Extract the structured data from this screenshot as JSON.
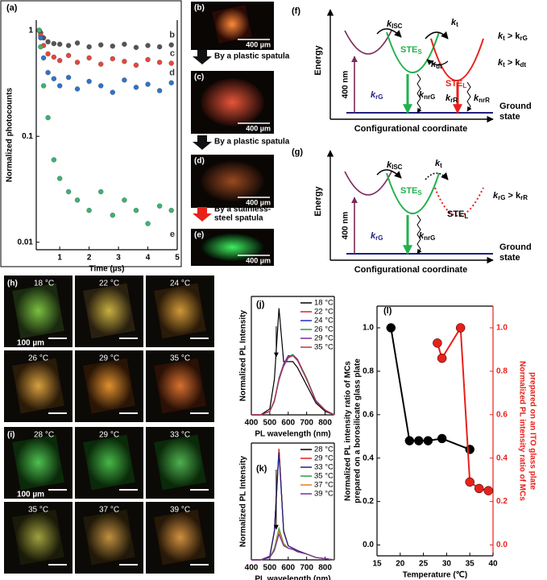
{
  "chart_data": [
    {
      "type": "scatter",
      "label": "(a)",
      "x_label": "Time (µs)",
      "y_label": "Normalized photocounts",
      "log_y": true,
      "xlim": [
        0.2,
        5
      ],
      "xticks": [
        1,
        2,
        3,
        4,
        5
      ],
      "ylim": [
        0.0085,
        1.25
      ],
      "yticks": [
        0.01,
        0.1,
        1
      ],
      "series": [
        {
          "name": "b",
          "color": "#555555",
          "x": [
            0.3,
            0.35,
            0.45,
            0.6,
            0.8,
            1.0,
            1.3,
            1.6,
            2.0,
            2.4,
            2.8,
            3.2,
            3.6,
            4.0,
            4.4,
            4.8
          ],
          "values": [
            1.0,
            0.95,
            0.85,
            0.78,
            0.75,
            0.74,
            0.72,
            0.76,
            0.7,
            0.73,
            0.71,
            0.74,
            0.69,
            0.72,
            0.7,
            0.73
          ]
        },
        {
          "name": "c",
          "color": "#e8463c",
          "x": [
            0.3,
            0.35,
            0.45,
            0.6,
            0.8,
            1.0,
            1.3,
            1.6,
            2.0,
            2.4,
            2.8,
            3.2,
            3.6,
            4.0,
            4.4,
            4.8
          ],
          "values": [
            1.0,
            0.9,
            0.72,
            0.6,
            0.56,
            0.52,
            0.58,
            0.5,
            0.55,
            0.48,
            0.54,
            0.51,
            0.47,
            0.53,
            0.5,
            0.49
          ]
        },
        {
          "name": "d",
          "color": "#2f74c8",
          "x": [
            0.3,
            0.35,
            0.45,
            0.6,
            0.8,
            1.0,
            1.3,
            1.6,
            2.0,
            2.4,
            2.8,
            3.2,
            3.6,
            4.0,
            4.4,
            4.8
          ],
          "values": [
            1.0,
            0.85,
            0.55,
            0.4,
            0.35,
            0.3,
            0.36,
            0.28,
            0.33,
            0.3,
            0.26,
            0.34,
            0.29,
            0.31,
            0.27,
            0.32
          ]
        },
        {
          "name": "e",
          "color": "#3cb371",
          "x": [
            0.3,
            0.35,
            0.45,
            0.6,
            0.8,
            1.0,
            1.3,
            1.6,
            2.0,
            2.4,
            2.8,
            3.2,
            3.6,
            4.0,
            4.4,
            4.8
          ],
          "values": [
            1.0,
            0.7,
            0.3,
            0.15,
            0.06,
            0.04,
            0.03,
            0.025,
            0.02,
            0.03,
            0.018,
            0.025,
            0.02,
            0.015,
            0.022,
            0.02
          ]
        }
      ]
    },
    {
      "type": "line",
      "label": "(j)",
      "x_label": "PL wavelength (nm)",
      "y_label": "Normalized PL Intensity",
      "xlim": [
        400,
        850
      ],
      "xticks": [
        400,
        500,
        600,
        700,
        800
      ],
      "ylim": [
        0,
        1
      ],
      "x": [
        400,
        450,
        500,
        525,
        550,
        575,
        600,
        625,
        650,
        700,
        750,
        800,
        850
      ],
      "series": [
        {
          "name": "18 °C",
          "color": "#000000",
          "values": [
            0,
            0,
            0.05,
            0.3,
            0.9,
            0.45,
            0.45,
            0.45,
            0.4,
            0.25,
            0.1,
            0.03,
            0
          ]
        },
        {
          "name": "22 °C",
          "color": "#e02020",
          "values": [
            0,
            0,
            0.03,
            0.12,
            0.3,
            0.42,
            0.49,
            0.5,
            0.47,
            0.3,
            0.12,
            0.04,
            0
          ]
        },
        {
          "name": "24 °C",
          "color": "#2030c0",
          "values": [
            0,
            0,
            0.03,
            0.12,
            0.31,
            0.43,
            0.5,
            0.5,
            0.46,
            0.3,
            0.12,
            0.04,
            0
          ]
        },
        {
          "name": "26 °C",
          "color": "#20a040",
          "values": [
            0,
            0,
            0.03,
            0.11,
            0.29,
            0.42,
            0.49,
            0.51,
            0.47,
            0.31,
            0.12,
            0.04,
            0
          ]
        },
        {
          "name": "29 °C",
          "color": "#7030a0",
          "values": [
            0,
            0,
            0.03,
            0.12,
            0.3,
            0.41,
            0.48,
            0.5,
            0.47,
            0.3,
            0.12,
            0.04,
            0
          ]
        },
        {
          "name": "35 °C",
          "color": "#c0304a",
          "values": [
            0,
            0,
            0.03,
            0.12,
            0.3,
            0.42,
            0.49,
            0.5,
            0.46,
            0.3,
            0.11,
            0.04,
            0
          ]
        }
      ]
    },
    {
      "type": "line",
      "label": "(k)",
      "x_label": "PL wavelength (nm)",
      "y_label": "Normalized PL Intensity",
      "xlim": [
        400,
        850
      ],
      "xticks": [
        400,
        500,
        600,
        700,
        800
      ],
      "ylim": [
        0,
        1
      ],
      "x": [
        400,
        450,
        500,
        525,
        550,
        575,
        600,
        625,
        650,
        700,
        750,
        800,
        850
      ],
      "series": [
        {
          "name": "28 °C",
          "color": "#000000",
          "values": [
            0,
            0,
            0.03,
            0.25,
            0.95,
            0.25,
            0.12,
            0.1,
            0.08,
            0.05,
            0.02,
            0.01,
            0
          ]
        },
        {
          "name": "29 °C",
          "color": "#e02020",
          "values": [
            0,
            0,
            0.03,
            0.25,
            0.95,
            0.25,
            0.12,
            0.1,
            0.08,
            0.05,
            0.02,
            0.01,
            0
          ]
        },
        {
          "name": "33 °C",
          "color": "#202080",
          "values": [
            0,
            0,
            0.03,
            0.24,
            0.92,
            0.24,
            0.12,
            0.1,
            0.08,
            0.05,
            0.02,
            0.01,
            0
          ]
        },
        {
          "name": "35 °C",
          "color": "#20a040",
          "values": [
            0,
            0,
            0.02,
            0.1,
            0.27,
            0.14,
            0.1,
            0.09,
            0.07,
            0.05,
            0.02,
            0.01,
            0
          ]
        },
        {
          "name": "37 °C",
          "color": "#e08020",
          "values": [
            0,
            0,
            0.02,
            0.09,
            0.25,
            0.13,
            0.1,
            0.09,
            0.07,
            0.05,
            0.02,
            0.01,
            0
          ]
        },
        {
          "name": "39 °C",
          "color": "#7030a0",
          "values": [
            0,
            0,
            0.02,
            0.08,
            0.22,
            0.12,
            0.1,
            0.09,
            0.07,
            0.05,
            0.02,
            0.01,
            0
          ]
        }
      ]
    },
    {
      "type": "line",
      "markers": true,
      "label": "(l)",
      "x_label": "Temperature (℃)",
      "y_label": [
        "Normalized PL intensity ratio of MCs",
        "prepared on a borosilicate glass plate"
      ],
      "y2_label": [
        "Normalized PL intensity ratio of MCs",
        "prepared on an ITO glass plate"
      ],
      "xlim": [
        15,
        40
      ],
      "xticks": [
        15,
        20,
        25,
        30,
        35,
        40
      ],
      "ylim": [
        -0.05,
        1.1
      ],
      "yticks": [
        {
          "value": 0,
          "label": "0.0"
        },
        0.2,
        0.4,
        0.6,
        0.8,
        {
          "value": 1,
          "label": "1.0"
        }
      ],
      "y2lim": [
        -0.05,
        1.1
      ],
      "y2ticks": [
        {
          "value": 0,
          "label": "0.0"
        },
        0.2,
        0.4,
        0.6,
        0.8,
        {
          "value": 1,
          "label": "1.0"
        }
      ],
      "series": [
        {
          "color": "#000000",
          "x": [
            18,
            22,
            24,
            26,
            29,
            35
          ],
          "values": [
            1.0,
            0.48,
            0.48,
            0.48,
            0.49,
            0.44
          ]
        },
        {
          "color": "#e8201a",
          "axis": "y2",
          "x": [
            28,
            29,
            33,
            35,
            37,
            39
          ],
          "values": [
            0.93,
            0.86,
            1.0,
            0.29,
            0.26,
            0.25
          ]
        }
      ]
    }
  ],
  "images": [
    {
      "label": "(b)",
      "scale": "400 µm"
    },
    {
      "label": "(c)",
      "scale": "400 µm"
    },
    {
      "label": "(d)",
      "scale": "400 µm"
    },
    {
      "label": "(e)",
      "scale": "400 µm"
    }
  ],
  "steps": [
    [
      "By a plastic spatula"
    ],
    [
      "By a plastic spatula"
    ],
    [
      "By a stainless-",
      "steel spatula"
    ]
  ],
  "temperature_maps": [
    {
      "label": "(h)",
      "scale": "100 µm",
      "temperatures": [
        "18 °C",
        "22 °C",
        "24 °C",
        "26 °C",
        "29 °C",
        "35 °C"
      ]
    },
    {
      "label": "(i)",
      "scale": "100 µm",
      "temperatures": [
        "28 °C",
        "29 °C",
        "33 °C",
        "35 °C",
        "37 °C",
        "39 °C"
      ]
    }
  ],
  "diagrams": [
    {
      "label": "(f)",
      "y_axis": "Energy",
      "x_axis": "Configurational coordinate",
      "ground": [
        "Ground",
        "state"
      ],
      "excitation": "400 nm",
      "labels": [
        [
          {
            "text": "k"
          },
          {
            "sub": "ISC"
          }
        ],
        [
          {
            "text": "k"
          },
          {
            "sub": "t"
          }
        ],
        [
          {
            "text": "STE"
          },
          {
            "sub": "S"
          }
        ],
        [
          {
            "text": "k"
          },
          {
            "sub": "dt"
          }
        ],
        [
          {
            "text": "STE"
          },
          {
            "sub": "L"
          }
        ],
        [
          {
            "text": "k"
          },
          {
            "sub": "rG"
          }
        ],
        [
          {
            "text": "k"
          },
          {
            "sub": "nrG"
          }
        ],
        [
          {
            "text": "k"
          },
          {
            "sub": "rR"
          }
        ],
        [
          {
            "text": "k"
          },
          {
            "sub": "nrR"
          }
        ],
        [
          {
            "text": "k"
          },
          {
            "sub": "t"
          },
          {
            "text": " > k"
          },
          {
            "sub": "rG"
          }
        ],
        [
          {
            "text": "k"
          },
          {
            "sub": "t"
          },
          {
            "text": " > k"
          },
          {
            "sub": "dt"
          }
        ]
      ]
    },
    {
      "label": "(g)",
      "y_axis": "Energy",
      "x_axis": "Configurational coordinate",
      "ground": [
        "Ground",
        "state"
      ],
      "excitation": "400 nm",
      "labels": [
        [
          {
            "text": "k"
          },
          {
            "sub": "ISC"
          }
        ],
        [
          {
            "text": "k"
          },
          {
            "sub": "t"
          }
        ],
        [
          {
            "text": "STE"
          },
          {
            "sub": "S"
          }
        ],
        [
          {
            "text": "STE"
          },
          {
            "sub": "L"
          }
        ],
        [
          {
            "text": "k"
          },
          {
            "sub": "rG"
          }
        ],
        [
          {
            "text": "k"
          },
          {
            "sub": "nrG"
          }
        ],
        [
          {
            "text": "k"
          },
          {
            "sub": "rG"
          },
          {
            "text": " > k"
          },
          {
            "sub": "rR"
          }
        ]
      ]
    }
  ]
}
